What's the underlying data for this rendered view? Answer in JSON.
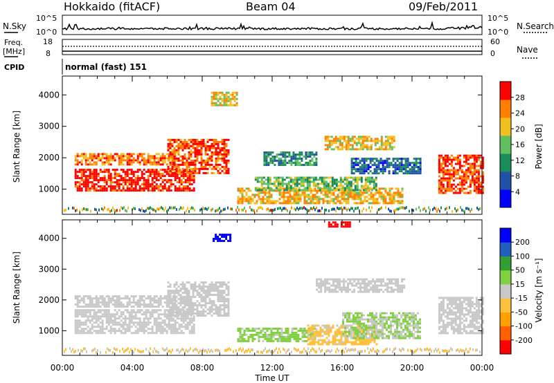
{
  "header": {
    "station": "Hokkaido (fitACF)",
    "beam": "Beam 04",
    "date": "09/Feb/2011"
  },
  "top_panels": {
    "nsky_label": "N.Sky",
    "nsky_ticks": [
      "10^5",
      "10^0"
    ],
    "nsearch_label": "N.Search",
    "nsearch_ticks": [
      "10^5",
      "10^0"
    ],
    "freq_label_1": "Freq.",
    "freq_label_2": "[MHz]",
    "freq_ticks": [
      "18",
      "8"
    ],
    "nave_label": "Nave",
    "nave_ticks": [
      "60",
      "0"
    ],
    "cpid_label": "CPID",
    "cpid_text": "normal (fast) 151"
  },
  "chart_data": [
    {
      "type": "heatmap",
      "title": "",
      "xlabel": "",
      "ylabel": "Slant Range [km]",
      "xlim": [
        0,
        24
      ],
      "ylim": [
        200,
        4600
      ],
      "yticks": [
        "1000",
        "2000",
        "3000",
        "4000"
      ],
      "colorbar": {
        "label": "Power [dB]",
        "ticks": [
          "4",
          "8",
          "12",
          "16",
          "20",
          "24",
          "28"
        ],
        "range": [
          0,
          32
        ],
        "colors": [
          "#0000ff",
          "#2050a8",
          "#1a8c5a",
          "#60c060",
          "#f0c020",
          "#ff8000",
          "#ff0000"
        ]
      },
      "regions": [
        {
          "t0": 0.7,
          "t1": 7.5,
          "r0": 950,
          "r1": 1650,
          "level": 30
        },
        {
          "t0": 0.7,
          "t1": 6.5,
          "r0": 1800,
          "r1": 2150,
          "level": 25
        },
        {
          "t0": 6.0,
          "t1": 9.5,
          "r0": 1500,
          "r1": 2600,
          "level": 27
        },
        {
          "t0": 10.0,
          "t1": 19.5,
          "r0": 550,
          "r1": 1050,
          "level": 22
        },
        {
          "t0": 11.0,
          "t1": 18.0,
          "r0": 1000,
          "r1": 1400,
          "level": 16
        },
        {
          "t0": 11.5,
          "t1": 14.5,
          "r0": 1800,
          "r1": 2200,
          "level": 12
        },
        {
          "t0": 15.0,
          "t1": 19.0,
          "r0": 2250,
          "r1": 2700,
          "level": 21
        },
        {
          "t0": 16.5,
          "t1": 20.5,
          "r0": 1500,
          "r1": 2000,
          "level": 8
        },
        {
          "t0": 21.5,
          "t1": 24.0,
          "r0": 900,
          "r1": 2100,
          "level": 28
        },
        {
          "t0": 8.5,
          "t1": 10.0,
          "r0": 3700,
          "r1": 4100,
          "level": 20
        }
      ]
    },
    {
      "type": "heatmap",
      "title": "",
      "xlabel": "Time UT",
      "ylabel": "Slant Range [km]",
      "xlim": [
        0,
        24
      ],
      "ylim": [
        200,
        4600
      ],
      "xticks": [
        "00:00",
        "04:00",
        "08:00",
        "12:00",
        "16:00",
        "20:00",
        "00:00"
      ],
      "yticks": [
        "1000",
        "2000",
        "3000",
        "4000"
      ],
      "colorbar": {
        "label": "Velocity [m s⁻¹]",
        "ticks": [
          "200",
          "100",
          "50",
          "15",
          "-15",
          "-50",
          "-100",
          "-200"
        ],
        "range": [
          -250,
          250
        ],
        "colors": [
          "#ff0000",
          "#ff6000",
          "#ffa000",
          "#ffc040",
          "#c8c8c8",
          "#80d040",
          "#30a030",
          "#2060c0",
          "#0000ff"
        ]
      },
      "regions": [
        {
          "t0": 0.7,
          "t1": 7.5,
          "r0": 900,
          "r1": 1700,
          "level": 0
        },
        {
          "t0": 0.7,
          "t1": 6.5,
          "r0": 1800,
          "r1": 2150,
          "level": 0
        },
        {
          "t0": 6.0,
          "t1": 9.5,
          "r0": 1500,
          "r1": 2600,
          "level": 0
        },
        {
          "t0": 10.0,
          "t1": 14.5,
          "r0": 650,
          "r1": 1100,
          "level": 40
        },
        {
          "t0": 14.0,
          "t1": 18.0,
          "r0": 550,
          "r1": 1200,
          "level": -40
        },
        {
          "t0": 16.0,
          "t1": 20.5,
          "r0": 750,
          "r1": 1600,
          "level": 30
        },
        {
          "t0": 14.5,
          "t1": 19.5,
          "r0": 2250,
          "r1": 2700,
          "level": 0
        },
        {
          "t0": 21.5,
          "t1": 24.0,
          "r0": 900,
          "r1": 2100,
          "level": 0
        },
        {
          "t0": 8.6,
          "t1": 9.6,
          "r0": 3900,
          "r1": 4150,
          "level": 220
        },
        {
          "t0": 15.2,
          "t1": 16.5,
          "r0": 4350,
          "r1": 4550,
          "level": -220
        }
      ]
    }
  ]
}
